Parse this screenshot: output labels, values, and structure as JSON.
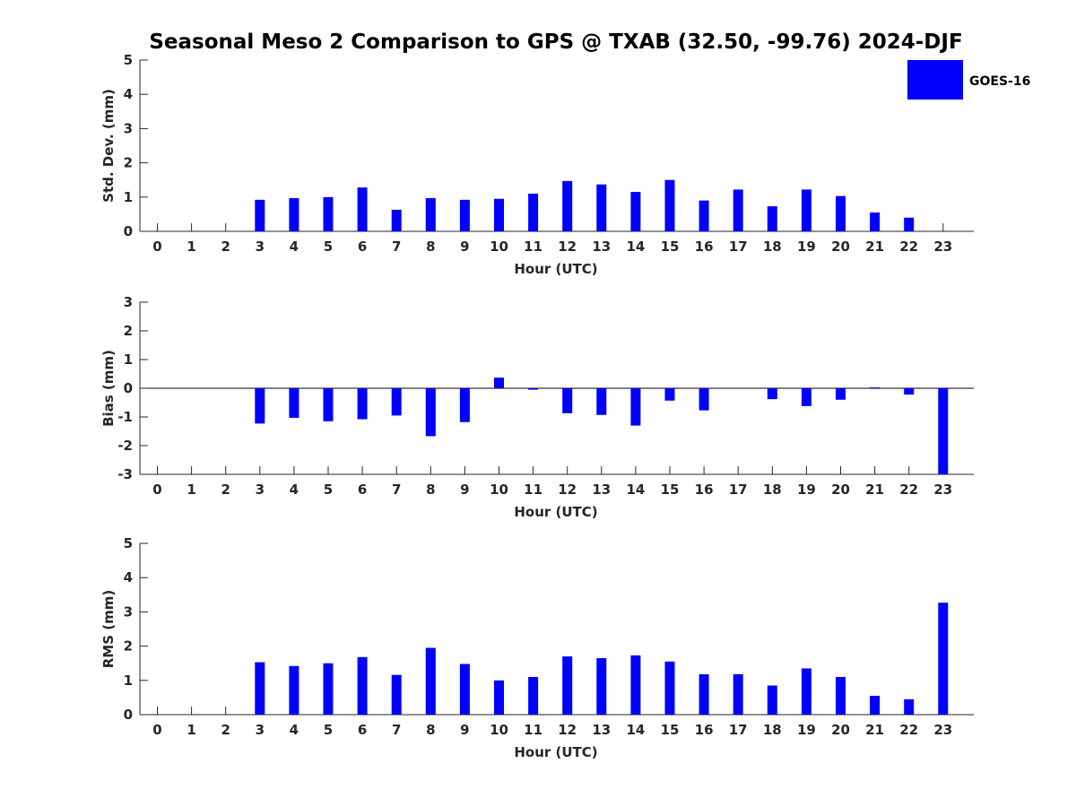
{
  "title": "Seasonal Meso 2 Comparison to GPS @ TXAB (32.50, -99.76) 2024-DJF",
  "legend": {
    "label": "GOES-16",
    "color": "#0000ff"
  },
  "bar_color": "#0000ff",
  "chart_data": [
    {
      "type": "bar",
      "xlabel": "Hour (UTC)",
      "ylabel": "Std. Dev. (mm)",
      "ylim": [
        0,
        5
      ],
      "yticks": [
        0,
        1,
        2,
        3,
        4,
        5
      ],
      "categories": [
        "0",
        "1",
        "2",
        "3",
        "4",
        "5",
        "6",
        "7",
        "8",
        "9",
        "10",
        "11",
        "12",
        "13",
        "14",
        "15",
        "16",
        "17",
        "18",
        "19",
        "20",
        "21",
        "22",
        "23"
      ],
      "series": [
        {
          "name": "GOES-16",
          "values": [
            null,
            null,
            null,
            0.92,
            0.97,
            1.0,
            1.28,
            0.63,
            0.97,
            0.92,
            0.95,
            1.1,
            1.47,
            1.37,
            1.15,
            1.5,
            0.9,
            1.22,
            0.73,
            1.22,
            1.03,
            0.55,
            0.4,
            null
          ]
        }
      ],
      "legend_position": "top-right",
      "grid": false
    },
    {
      "type": "bar",
      "xlabel": "Hour (UTC)",
      "ylabel": "Bias (mm)",
      "ylim": [
        -3,
        3
      ],
      "yticks": [
        -3,
        -2,
        -1,
        0,
        1,
        2,
        3
      ],
      "categories": [
        "0",
        "1",
        "2",
        "3",
        "4",
        "5",
        "6",
        "7",
        "8",
        "9",
        "10",
        "11",
        "12",
        "13",
        "14",
        "15",
        "16",
        "17",
        "18",
        "19",
        "20",
        "21",
        "22",
        "23"
      ],
      "series": [
        {
          "name": "GOES-16",
          "values": [
            null,
            null,
            null,
            -1.23,
            -1.03,
            -1.15,
            -1.08,
            -0.95,
            -1.67,
            -1.18,
            0.37,
            -0.05,
            -0.87,
            -0.93,
            -1.3,
            -0.43,
            -0.77,
            0.0,
            -0.38,
            -0.62,
            -0.4,
            0.03,
            -0.22,
            -3.0
          ]
        }
      ],
      "grid": false
    },
    {
      "type": "bar",
      "xlabel": "Hour (UTC)",
      "ylabel": "RMS (mm)",
      "ylim": [
        0,
        5
      ],
      "yticks": [
        0,
        1,
        2,
        3,
        4,
        5
      ],
      "categories": [
        "0",
        "1",
        "2",
        "3",
        "4",
        "5",
        "6",
        "7",
        "8",
        "9",
        "10",
        "11",
        "12",
        "13",
        "14",
        "15",
        "16",
        "17",
        "18",
        "19",
        "20",
        "21",
        "22",
        "23"
      ],
      "series": [
        {
          "name": "GOES-16",
          "values": [
            null,
            null,
            null,
            1.53,
            1.42,
            1.5,
            1.68,
            1.16,
            1.95,
            1.48,
            1.0,
            1.1,
            1.7,
            1.65,
            1.73,
            1.55,
            1.18,
            1.18,
            0.85,
            1.35,
            1.1,
            0.55,
            0.45,
            3.27
          ]
        }
      ],
      "grid": false
    }
  ]
}
